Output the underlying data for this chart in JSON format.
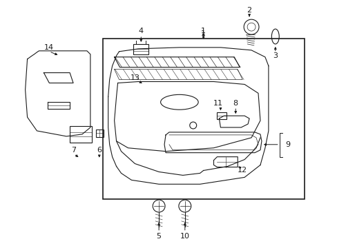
{
  "bg_color": "#ffffff",
  "line_color": "#1a1a1a",
  "label_color": "#1a1a1a",
  "fig_w": 4.89,
  "fig_h": 3.6,
  "dpi": 100,
  "label_fs": 8.0
}
